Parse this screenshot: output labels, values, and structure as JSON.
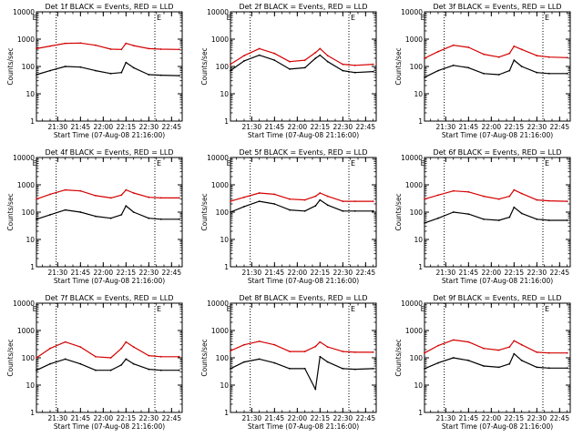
{
  "figure": {
    "title_prefix": "Det ",
    "title_suffix": " BLACK = Events, RED = LLD",
    "ylabel": "Counts/sec",
    "xlabel": "Start Time (07-Aug-08 21:16:00)",
    "time_ticks": [
      "21:30",
      "21:45",
      "22:00",
      "22:15",
      "22:30",
      "22:45"
    ],
    "y_ticks": [
      "1",
      "10",
      "100",
      "1000",
      "10000"
    ],
    "marker_letters": [
      "E",
      "E"
    ],
    "colors": {
      "events": "#000000",
      "lld": "#d40000",
      "axes": "#000000"
    }
  },
  "chart_data": [
    {
      "type": "line",
      "title": "Det 1f BLACK = Events, RED = LLD",
      "xlabel": "Start Time (07-Aug-08 21:16:00)",
      "ylabel": "Counts/sec",
      "x": [
        "21:16",
        "21:25",
        "21:35",
        "21:45",
        "21:55",
        "22:05",
        "22:12",
        "22:15",
        "22:20",
        "22:30",
        "22:38",
        "22:50"
      ],
      "xlim": [
        "21:16",
        "22:52"
      ],
      "ylim": [
        1,
        10000
      ],
      "yscale": "log",
      "vlines": [
        "21:29",
        "22:34"
      ],
      "series": [
        {
          "name": "LLD",
          "color": "#d40000",
          "values": [
            450,
            560,
            700,
            720,
            600,
            430,
            420,
            700,
            580,
            450,
            430,
            420
          ]
        },
        {
          "name": "Events",
          "color": "#000000",
          "values": [
            50,
            70,
            100,
            95,
            70,
            55,
            60,
            140,
            90,
            50,
            48,
            46
          ]
        }
      ]
    },
    {
      "type": "line",
      "title": "Det 2f BLACK = Events, RED = LLD",
      "xlabel": "Start Time (07-Aug-08 21:16:00)",
      "ylabel": "Counts/sec",
      "x": [
        "21:16",
        "21:25",
        "21:35",
        "21:45",
        "21:55",
        "22:05",
        "22:12",
        "22:15",
        "22:20",
        "22:30",
        "22:38",
        "22:50"
      ],
      "xlim": [
        "21:16",
        "22:52"
      ],
      "ylim": [
        1,
        10000
      ],
      "yscale": "log",
      "vlines": [
        "21:29",
        "22:34"
      ],
      "series": [
        {
          "name": "LLD",
          "color": "#d40000",
          "values": [
            120,
            250,
            450,
            300,
            150,
            170,
            320,
            450,
            250,
            120,
            110,
            120
          ]
        },
        {
          "name": "Events",
          "color": "#000000",
          "values": [
            70,
            160,
            260,
            170,
            80,
            90,
            200,
            260,
            150,
            70,
            60,
            65
          ]
        }
      ]
    },
    {
      "type": "line",
      "title": "Det 3f BLACK = Events, RED = LLD",
      "xlabel": "Start Time (07-Aug-08 21:16:00)",
      "ylabel": "Counts/sec",
      "x": [
        "21:16",
        "21:25",
        "21:35",
        "21:45",
        "21:55",
        "22:05",
        "22:12",
        "22:15",
        "22:20",
        "22:30",
        "22:38",
        "22:50"
      ],
      "xlim": [
        "21:16",
        "22:52"
      ],
      "ylim": [
        1,
        10000
      ],
      "yscale": "log",
      "vlines": [
        "21:29",
        "22:34"
      ],
      "series": [
        {
          "name": "LLD",
          "color": "#d40000",
          "values": [
            200,
            350,
            600,
            500,
            280,
            220,
            300,
            550,
            420,
            250,
            220,
            210
          ]
        },
        {
          "name": "Events",
          "color": "#000000",
          "values": [
            40,
            70,
            110,
            90,
            55,
            50,
            70,
            170,
            100,
            60,
            55,
            55
          ]
        }
      ]
    },
    {
      "type": "line",
      "title": "Det 4f BLACK = Events, RED = LLD",
      "xlabel": "Start Time (07-Aug-08 21:16:00)",
      "ylabel": "Counts/sec",
      "x": [
        "21:16",
        "21:25",
        "21:35",
        "21:45",
        "21:55",
        "22:05",
        "22:12",
        "22:15",
        "22:20",
        "22:30",
        "22:38",
        "22:50"
      ],
      "xlim": [
        "21:16",
        "22:52"
      ],
      "ylim": [
        1,
        10000
      ],
      "yscale": "log",
      "vlines": [
        "21:29",
        "22:34"
      ],
      "series": [
        {
          "name": "LLD",
          "color": "#d40000",
          "values": [
            300,
            450,
            650,
            600,
            400,
            330,
            420,
            650,
            500,
            350,
            330,
            330
          ]
        },
        {
          "name": "Events",
          "color": "#000000",
          "values": [
            55,
            80,
            120,
            100,
            70,
            60,
            80,
            170,
            100,
            60,
            55,
            55
          ]
        }
      ]
    },
    {
      "type": "line",
      "title": "Det 5f BLACK = Events, RED = LLD",
      "xlabel": "Start Time (07-Aug-08 21:16:00)",
      "ylabel": "Counts/sec",
      "x": [
        "21:16",
        "21:25",
        "21:35",
        "21:45",
        "21:55",
        "22:05",
        "22:12",
        "22:15",
        "22:20",
        "22:30",
        "22:38",
        "22:50"
      ],
      "xlim": [
        "21:16",
        "22:52"
      ],
      "ylim": [
        1,
        10000
      ],
      "yscale": "log",
      "vlines": [
        "21:29",
        "22:34"
      ],
      "series": [
        {
          "name": "LLD",
          "color": "#d40000",
          "values": [
            250,
            350,
            500,
            450,
            300,
            280,
            380,
            500,
            380,
            250,
            250,
            250
          ]
        },
        {
          "name": "Events",
          "color": "#000000",
          "values": [
            100,
            160,
            250,
            200,
            120,
            110,
            170,
            280,
            180,
            110,
            110,
            110
          ]
        }
      ]
    },
    {
      "type": "line",
      "title": "Det 6f BLACK = Events, RED = LLD",
      "xlabel": "Start Time (07-Aug-08 21:16:00)",
      "ylabel": "Counts/sec",
      "x": [
        "21:16",
        "21:25",
        "21:35",
        "21:45",
        "21:55",
        "22:05",
        "22:12",
        "22:15",
        "22:20",
        "22:30",
        "22:38",
        "22:50"
      ],
      "xlim": [
        "21:16",
        "22:52"
      ],
      "ylim": [
        1,
        10000
      ],
      "yscale": "log",
      "vlines": [
        "21:29",
        "22:34"
      ],
      "series": [
        {
          "name": "LLD",
          "color": "#d40000",
          "values": [
            300,
            420,
            600,
            550,
            380,
            300,
            380,
            650,
            480,
            280,
            260,
            250
          ]
        },
        {
          "name": "Events",
          "color": "#000000",
          "values": [
            40,
            60,
            100,
            85,
            55,
            50,
            65,
            150,
            90,
            55,
            50,
            50
          ]
        }
      ]
    },
    {
      "type": "line",
      "title": "Det 7f BLACK = Events, RED = LLD",
      "xlabel": "Start Time (07-Aug-08 21:16:00)",
      "ylabel": "Counts/sec",
      "x": [
        "21:16",
        "21:25",
        "21:35",
        "21:45",
        "21:55",
        "22:05",
        "22:12",
        "22:15",
        "22:20",
        "22:30",
        "22:38",
        "22:50"
      ],
      "xlim": [
        "21:16",
        "22:52"
      ],
      "ylim": [
        1,
        10000
      ],
      "yscale": "log",
      "vlines": [
        "21:29",
        "22:34"
      ],
      "series": [
        {
          "name": "LLD",
          "color": "#d40000",
          "values": [
            100,
            220,
            380,
            250,
            110,
            100,
            220,
            380,
            250,
            120,
            110,
            110
          ]
        },
        {
          "name": "Events",
          "color": "#000000",
          "values": [
            35,
            60,
            90,
            60,
            35,
            35,
            55,
            90,
            60,
            38,
            35,
            35
          ]
        }
      ]
    },
    {
      "type": "line",
      "title": "Det 8f BLACK = Events, RED = LLD",
      "xlabel": "Start Time (07-Aug-08 21:16:00)",
      "ylabel": "Counts/sec",
      "x": [
        "21:16",
        "21:25",
        "21:35",
        "21:45",
        "21:55",
        "22:05",
        "22:12",
        "22:15",
        "22:20",
        "22:30",
        "22:38",
        "22:50"
      ],
      "xlim": [
        "21:16",
        "22:52"
      ],
      "ylim": [
        1,
        10000
      ],
      "yscale": "log",
      "vlines": [
        "21:29",
        "22:34"
      ],
      "series": [
        {
          "name": "LLD",
          "color": "#d40000",
          "values": [
            180,
            300,
            400,
            300,
            170,
            170,
            260,
            380,
            250,
            170,
            160,
            160
          ]
        },
        {
          "name": "Events",
          "color": "#000000",
          "values": [
            40,
            70,
            90,
            65,
            40,
            40,
            7,
            110,
            70,
            40,
            38,
            40
          ]
        }
      ]
    },
    {
      "type": "line",
      "title": "Det 9f BLACK = Events, RED = LLD",
      "xlabel": "Start Time (07-Aug-08 21:16:00)",
      "ylabel": "Counts/sec",
      "x": [
        "21:16",
        "21:25",
        "21:35",
        "21:45",
        "21:55",
        "22:05",
        "22:12",
        "22:15",
        "22:20",
        "22:30",
        "22:38",
        "22:50"
      ],
      "xlim": [
        "21:16",
        "22:52"
      ],
      "ylim": [
        1,
        10000
      ],
      "yscale": "log",
      "vlines": [
        "21:29",
        "22:34"
      ],
      "series": [
        {
          "name": "LLD",
          "color": "#d40000",
          "values": [
            150,
            280,
            450,
            380,
            220,
            190,
            250,
            420,
            300,
            160,
            150,
            150
          ]
        },
        {
          "name": "Events",
          "color": "#000000",
          "values": [
            40,
            65,
            100,
            80,
            50,
            45,
            60,
            140,
            80,
            45,
            42,
            42
          ]
        }
      ]
    }
  ]
}
